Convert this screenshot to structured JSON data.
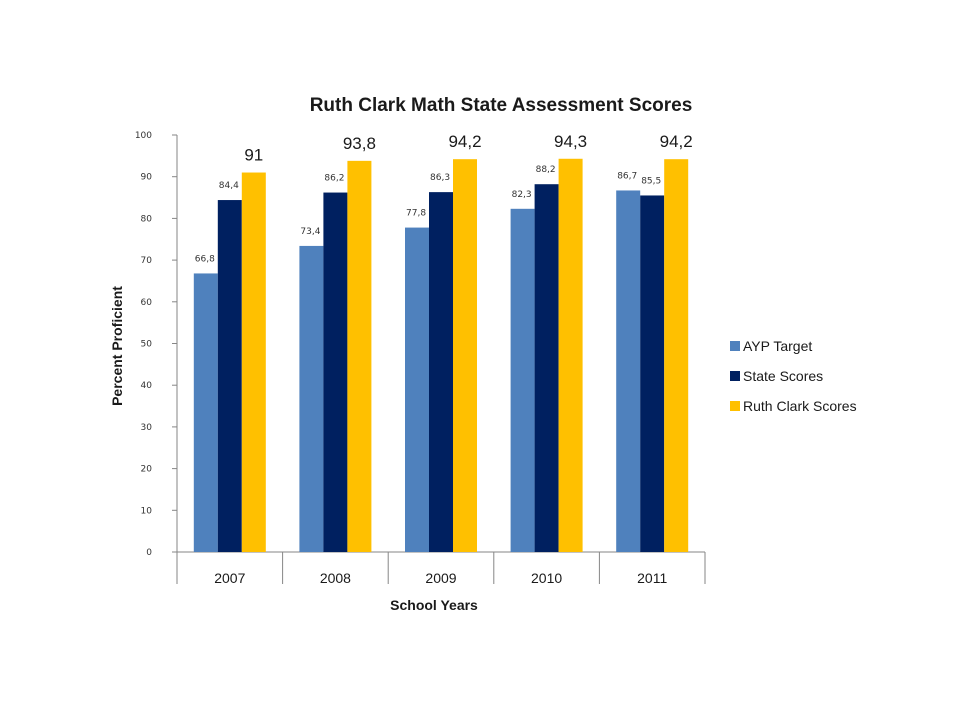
{
  "chart_data": {
    "type": "bar",
    "title": "Ruth Clark Math State Assessment Scores",
    "xlabel": "School Years",
    "ylabel": "Percent Proficient",
    "categories": [
      "2007",
      "2008",
      "2009",
      "2010",
      "2011"
    ],
    "ylim": [
      0,
      100
    ],
    "yticks": [
      0,
      10,
      20,
      30,
      40,
      50,
      60,
      70,
      80,
      90,
      100
    ],
    "grid": false,
    "legend_position": "right",
    "series": [
      {
        "name": "AYP Target",
        "color": "#4f81bd",
        "values": [
          66.8,
          73.4,
          77.8,
          82.3,
          86.7
        ],
        "labels": [
          "66,8",
          "73,4",
          "77,8",
          "82,3",
          "86,7"
        ]
      },
      {
        "name": "State Scores",
        "color": "#002060",
        "values": [
          84.4,
          86.2,
          86.3,
          88.2,
          85.5
        ],
        "labels": [
          "84,4",
          "86,2",
          "86,3",
          "88,2",
          "85,5"
        ]
      },
      {
        "name": "Ruth Clark Scores",
        "color": "#ffc000",
        "values": [
          91,
          93.8,
          94.2,
          94.3,
          94.2
        ],
        "labels": [
          "91",
          "93,8",
          "94,2",
          "94,3",
          "94,2"
        ]
      }
    ]
  }
}
